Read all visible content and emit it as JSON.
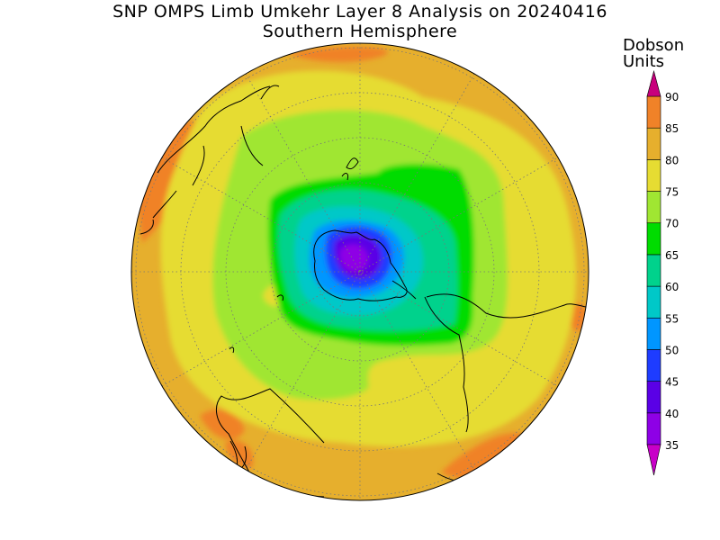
{
  "title": {
    "line1": "SNP OMPS Limb Umkehr Layer 8 Analysis on 20240416",
    "line2": "Southern Hemisphere"
  },
  "colorbar": {
    "unit_line1": "Dobson",
    "unit_line2": "Units",
    "levels": [
      {
        "value": "35",
        "color": "#8e00e6"
      },
      {
        "value": "40",
        "color": "#5a00e6"
      },
      {
        "value": "45",
        "color": "#1e3cff"
      },
      {
        "value": "50",
        "color": "#0096ff"
      },
      {
        "value": "55",
        "color": "#00c8c8"
      },
      {
        "value": "60",
        "color": "#00d28c"
      },
      {
        "value": "65",
        "color": "#00dc00"
      },
      {
        "value": "70",
        "color": "#a0e632"
      },
      {
        "value": "75",
        "color": "#e6dc32"
      },
      {
        "value": "80",
        "color": "#e6af2d"
      },
      {
        "value": "85",
        "color": "#f08228"
      },
      {
        "value": "90",
        "color": "#fa3c3c"
      }
    ],
    "low_color": "#c800c8",
    "high_color": "#c8007d"
  }
}
